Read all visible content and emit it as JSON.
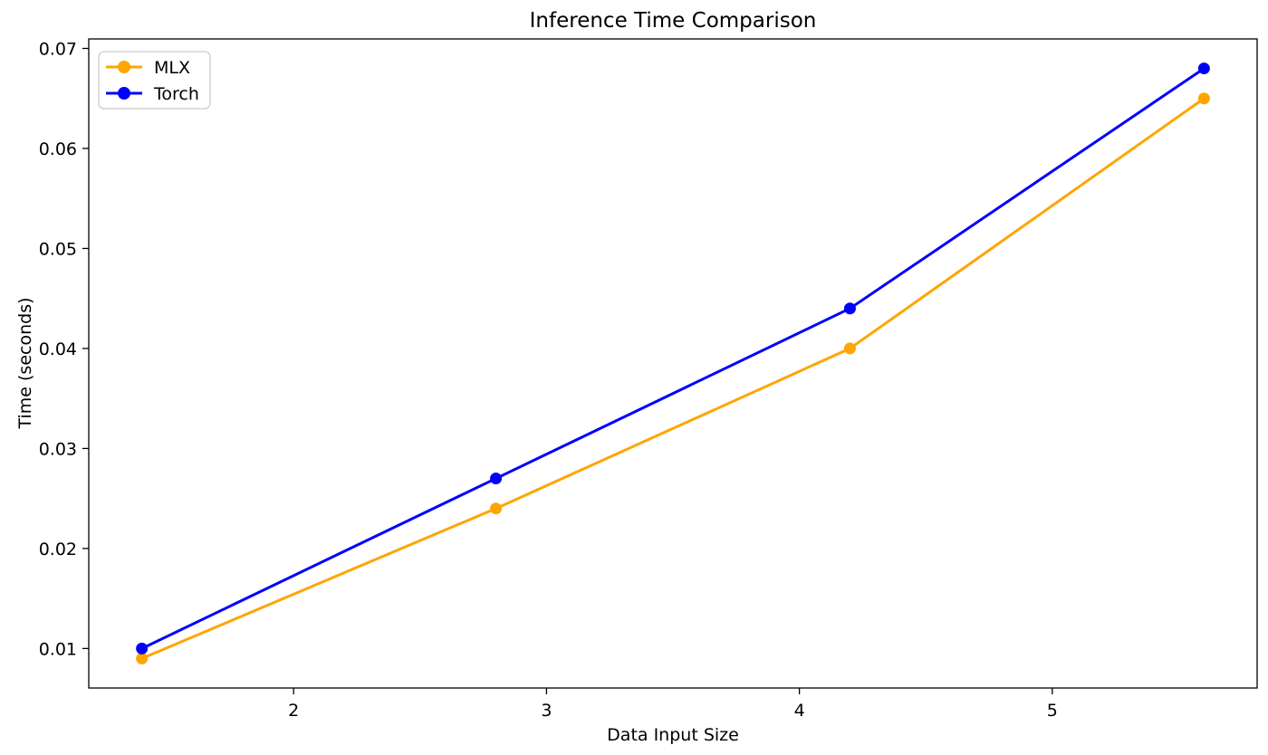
{
  "chart_data": {
    "type": "line",
    "title": "Inference Time Comparison",
    "xlabel": "Data Input Size",
    "ylabel": "Time (seconds)",
    "x": [
      1.4,
      2.8,
      4.2,
      5.6
    ],
    "series": [
      {
        "name": "MLX",
        "color": "#FFA500",
        "marker": "circle",
        "values": [
          0.009,
          0.024,
          0.04,
          0.065
        ]
      },
      {
        "name": "Torch",
        "color": "#0000FF",
        "marker": "circle",
        "values": [
          0.01,
          0.027,
          0.044,
          0.068
        ]
      }
    ],
    "xlim": [
      1.19,
      5.81
    ],
    "ylim": [
      0.00605,
      0.07095
    ],
    "xticks": [
      2,
      3,
      4,
      5
    ],
    "yticks": [
      0.01,
      0.02,
      0.03,
      0.04,
      0.05,
      0.06,
      0.07
    ],
    "y_tick_decimals": 2,
    "grid": false,
    "legend_position": "upper-left",
    "legend_entries": [
      "MLX",
      "Torch"
    ],
    "colors": {
      "mlx_orange": "#FFA500",
      "torch_blue": "#0000FF",
      "spine": "#000000",
      "legend_border": "#cccccc",
      "background": "#ffffff"
    }
  }
}
